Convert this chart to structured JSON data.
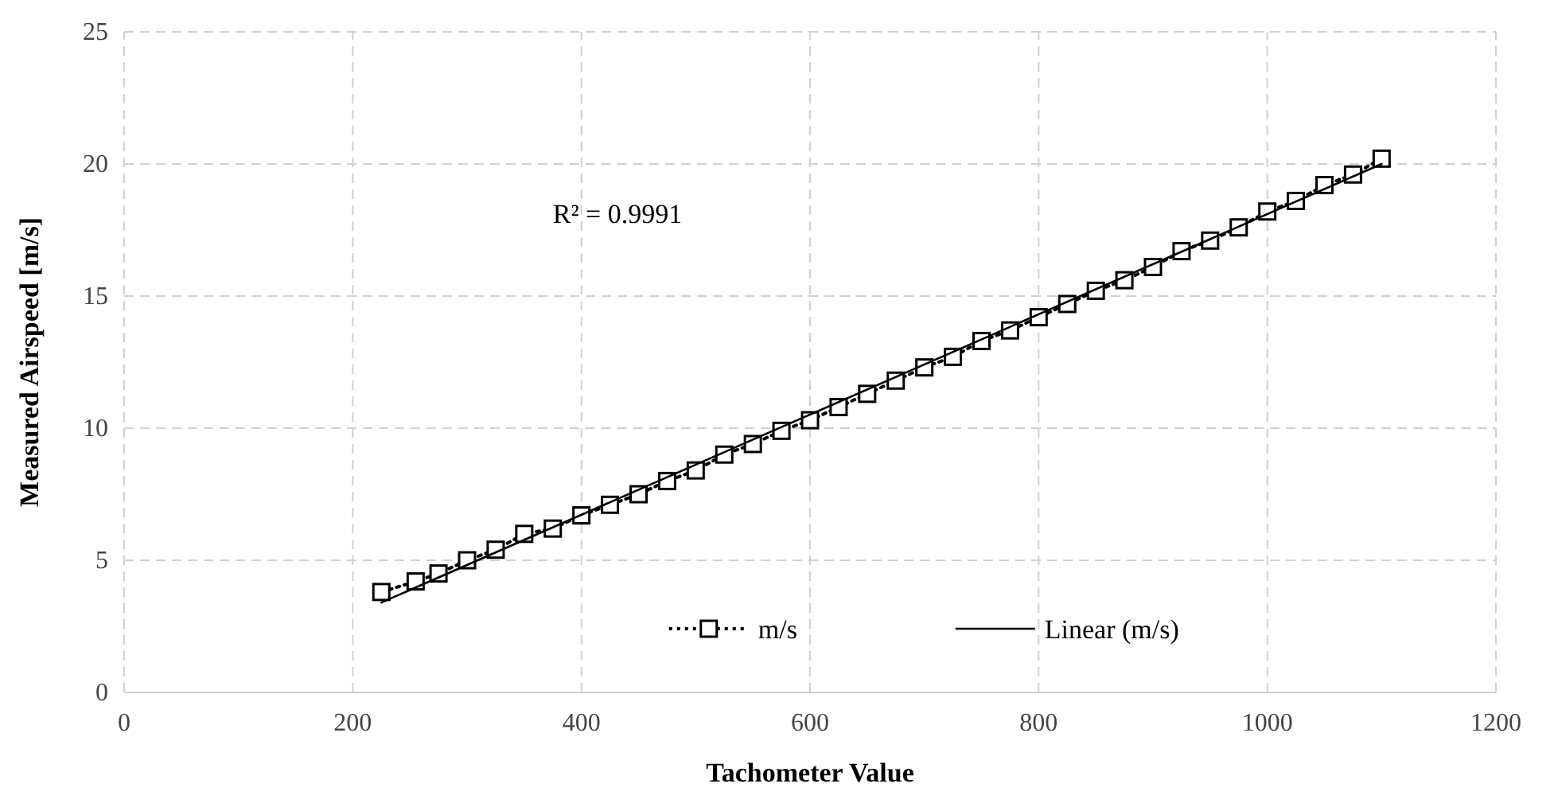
{
  "chart_data": {
    "type": "line",
    "xlabel": "Tachometer Value",
    "ylabel": "Measured Airspeed [m/s]",
    "xlim": [
      0,
      1200
    ],
    "xticks": [
      0,
      200,
      400,
      600,
      800,
      1000,
      1200
    ],
    "ylim": [
      0,
      25
    ],
    "yticks": [
      0,
      5,
      10,
      15,
      20,
      25
    ],
    "grid": true,
    "legend": "bottom",
    "annotations": [
      "R² = 0.9991"
    ],
    "series": [
      {
        "name": "m/s",
        "color": "#000000",
        "marker": "square",
        "line_style": "dotted",
        "x": [
          225,
          255,
          275,
          300,
          325,
          350,
          375,
          400,
          425,
          450,
          475,
          500,
          525,
          550,
          575,
          600,
          625,
          650,
          675,
          700,
          725,
          750,
          775,
          800,
          825,
          850,
          875,
          900,
          925,
          950,
          975,
          1000,
          1025,
          1050,
          1075,
          1100
        ],
        "values": [
          3.8,
          4.2,
          4.5,
          5.0,
          5.4,
          6.0,
          6.2,
          6.7,
          7.1,
          7.5,
          8.0,
          8.4,
          9.0,
          9.4,
          9.9,
          10.3,
          10.8,
          11.3,
          11.8,
          12.3,
          12.7,
          13.3,
          13.7,
          14.2,
          14.7,
          15.2,
          15.6,
          16.1,
          16.7,
          17.1,
          17.6,
          18.2,
          18.6,
          19.2,
          19.6,
          20.2
        ]
      },
      {
        "name": "Linear (m/s)",
        "type": "line",
        "color": "#000000",
        "marker": "none",
        "line_style": "solid",
        "x": [
          225,
          1100
        ],
        "values": [
          3.4,
          20.0
        ]
      }
    ]
  }
}
